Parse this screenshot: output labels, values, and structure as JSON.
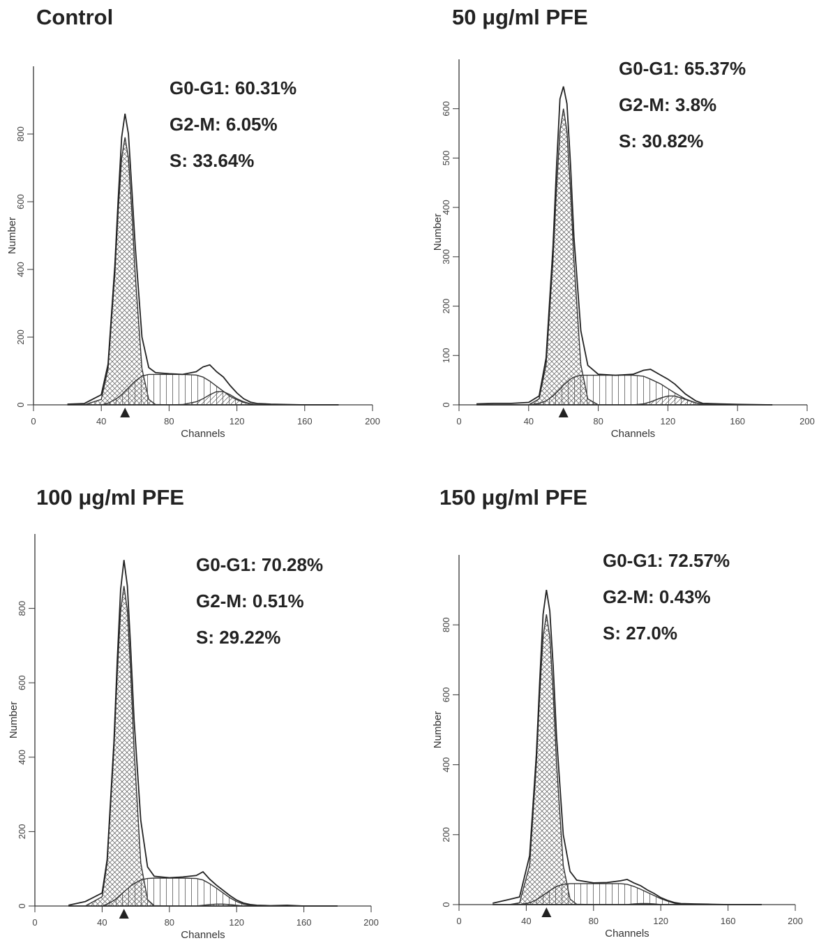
{
  "chart_data": [
    {
      "type": "line",
      "title": "Control",
      "annotations": [
        "G0-G1: 60.31%",
        "G2-M: 6.05%",
        "S: 33.64%"
      ],
      "xlabel": "Channels",
      "ylabel": "Number",
      "xlim": [
        0,
        200
      ],
      "xticks": [
        0,
        40,
        80,
        120,
        160,
        200
      ],
      "ylim": [
        0,
        1000
      ],
      "yticks": [
        0,
        200,
        400,
        600,
        800
      ],
      "peak_marker": 54,
      "x": [
        20,
        30,
        40,
        44,
        48,
        50,
        52,
        54,
        56,
        58,
        60,
        64,
        68,
        72,
        80,
        88,
        96,
        100,
        104,
        108,
        112,
        116,
        120,
        124,
        128,
        132,
        140,
        150,
        160,
        180
      ],
      "series": [
        {
          "color": "#333333",
          "fill": "crosshatch",
          "values": [
            0,
            0,
            16,
            107,
            385,
            574,
            729,
            790,
            729,
            574,
            385,
            107,
            16,
            1,
            0,
            0,
            0,
            0,
            0,
            0,
            0,
            0,
            0,
            0,
            0,
            0,
            0,
            0,
            0,
            0
          ]
        },
        {
          "color": "#333333",
          "fill": "vertical",
          "values": [
            0,
            0,
            0,
            5,
            15,
            22,
            30,
            40,
            50,
            60,
            70,
            85,
            90,
            90,
            90,
            90,
            88,
            82,
            70,
            55,
            40,
            25,
            15,
            7,
            3,
            0,
            0,
            0,
            0,
            0
          ]
        },
        {
          "color": "#333333",
          "fill": "diagonal",
          "values": [
            0,
            0,
            0,
            0,
            0,
            0,
            0,
            0,
            0,
            0,
            0,
            0,
            0,
            0,
            0,
            1,
            9,
            18,
            30,
            39,
            39,
            30,
            18,
            9,
            3,
            0,
            0,
            0,
            0,
            0
          ]
        },
        {
          "color": "#222222",
          "fill": "none",
          "values": [
            2,
            4,
            30,
            120,
            410,
            610,
            790,
            860,
            800,
            640,
            470,
            200,
            110,
            95,
            92,
            90,
            98,
            112,
            118,
            98,
            82,
            57,
            35,
            18,
            8,
            4,
            2,
            1,
            0,
            0
          ]
        }
      ]
    },
    {
      "type": "line",
      "title": "50 μg/ml PFE",
      "annotations": [
        "G0-G1: 65.37%",
        "G2-M: 3.8%",
        "S: 30.82%"
      ],
      "xlabel": "Channels",
      "ylabel": "Number",
      "xlim": [
        0,
        200
      ],
      "xticks": [
        0,
        40,
        80,
        120,
        160,
        200
      ],
      "ylim": [
        0,
        700
      ],
      "yticks": [
        0,
        100,
        200,
        300,
        400,
        500,
        600
      ],
      "peak_marker": 60,
      "x": [
        10,
        20,
        30,
        40,
        46,
        50,
        54,
        56,
        58,
        60,
        62,
        64,
        66,
        70,
        74,
        80,
        90,
        100,
        106,
        110,
        116,
        120,
        124,
        130,
        136,
        140,
        150,
        160,
        180
      ],
      "series": [
        {
          "color": "#333333",
          "fill": "crosshatch",
          "values": [
            0,
            0,
            0,
            0,
            12,
            81,
            292,
            436,
            554,
            600,
            554,
            436,
            292,
            81,
            12,
            0,
            0,
            0,
            0,
            0,
            0,
            0,
            0,
            0,
            0,
            0,
            0,
            0,
            0
          ]
        },
        {
          "color": "#333333",
          "fill": "vertical",
          "values": [
            0,
            0,
            0,
            0,
            3,
            8,
            18,
            25,
            32,
            40,
            46,
            52,
            56,
            60,
            60,
            60,
            60,
            60,
            58,
            52,
            42,
            33,
            24,
            12,
            4,
            1,
            0,
            0,
            0
          ]
        },
        {
          "color": "#333333",
          "fill": "diagonal",
          "values": [
            0,
            0,
            0,
            0,
            0,
            0,
            0,
            0,
            0,
            0,
            0,
            0,
            0,
            0,
            0,
            0,
            0,
            0,
            2,
            6,
            14,
            18,
            18,
            11,
            4,
            1,
            0,
            0,
            0
          ]
        },
        {
          "color": "#222222",
          "fill": "none",
          "values": [
            2,
            3,
            3,
            5,
            18,
            95,
            320,
            480,
            620,
            645,
            610,
            490,
            340,
            150,
            80,
            62,
            60,
            62,
            70,
            72,
            60,
            52,
            42,
            22,
            8,
            3,
            2,
            1,
            0
          ]
        }
      ]
    },
    {
      "type": "line",
      "title": "100 μg/ml PFE",
      "annotations": [
        "G0-G1: 70.28%",
        "G2-M: 0.51%",
        "S: 29.22%"
      ],
      "xlabel": "Channels",
      "ylabel": "Number",
      "xlim": [
        0,
        200
      ],
      "xticks": [
        0,
        40,
        80,
        120,
        160,
        200
      ],
      "ylim": [
        0,
        1000
      ],
      "yticks": [
        0,
        200,
        400,
        600,
        800
      ],
      "peak_marker": 53,
      "x": [
        20,
        30,
        40,
        43,
        47,
        49,
        51,
        53,
        55,
        57,
        59,
        63,
        67,
        71,
        80,
        88,
        96,
        100,
        104,
        108,
        112,
        116,
        120,
        124,
        128,
        132,
        140,
        150,
        160,
        180
      ],
      "series": [
        {
          "color": "#333333",
          "fill": "crosshatch",
          "values": [
            0,
            0,
            25,
            116,
            419,
            624,
            794,
            860,
            794,
            624,
            419,
            116,
            17,
            1,
            0,
            0,
            0,
            0,
            0,
            0,
            0,
            0,
            0,
            0,
            0,
            0,
            0,
            0,
            0,
            0
          ]
        },
        {
          "color": "#333333",
          "fill": "vertical",
          "values": [
            0,
            0,
            0,
            5,
            15,
            22,
            30,
            38,
            46,
            54,
            60,
            70,
            74,
            75,
            75,
            75,
            74,
            70,
            60,
            48,
            35,
            22,
            12,
            5,
            2,
            0,
            0,
            0,
            0,
            0
          ]
        },
        {
          "color": "#333333",
          "fill": "diagonal",
          "values": [
            0,
            0,
            0,
            0,
            0,
            0,
            0,
            0,
            0,
            0,
            0,
            0,
            0,
            0,
            0,
            0,
            0,
            2,
            4,
            5,
            5,
            4,
            2,
            0,
            0,
            0,
            0,
            0,
            0,
            0
          ]
        },
        {
          "color": "#222222",
          "fill": "none",
          "values": [
            2,
            12,
            35,
            125,
            440,
            660,
            850,
            930,
            860,
            690,
            500,
            230,
            105,
            80,
            76,
            78,
            82,
            92,
            72,
            56,
            42,
            28,
            16,
            8,
            4,
            2,
            1,
            2,
            0,
            0
          ]
        }
      ]
    },
    {
      "type": "line",
      "title": "150 μg/ml PFE",
      "annotations": [
        "G0-G1: 72.57%",
        "G2-M: 0.43%",
        "S: 27.0%"
      ],
      "xlabel": "Channels",
      "ylabel": "Number",
      "xlim": [
        0,
        200
      ],
      "xticks": [
        0,
        40,
        80,
        120,
        160,
        200
      ],
      "ylim": [
        0,
        1000
      ],
      "yticks": [
        0,
        200,
        400,
        600,
        800
      ],
      "peak_marker": 52,
      "x": [
        20,
        30,
        36,
        42,
        46,
        48,
        50,
        52,
        54,
        56,
        58,
        62,
        66,
        70,
        80,
        88,
        96,
        100,
        104,
        108,
        112,
        116,
        120,
        124,
        128,
        132,
        140,
        150,
        160,
        180
      ],
      "series": [
        {
          "color": "#333333",
          "fill": "crosshatch",
          "values": [
            0,
            0,
            5,
            112,
            404,
            603,
            766,
            830,
            766,
            603,
            404,
            112,
            16,
            1,
            0,
            0,
            0,
            0,
            0,
            0,
            0,
            0,
            0,
            0,
            0,
            0,
            0,
            0,
            0,
            0
          ]
        },
        {
          "color": "#333333",
          "fill": "vertical",
          "values": [
            0,
            0,
            0,
            5,
            14,
            20,
            27,
            33,
            40,
            46,
            52,
            58,
            60,
            60,
            60,
            60,
            60,
            58,
            52,
            44,
            35,
            26,
            17,
            10,
            4,
            1,
            0,
            0,
            0,
            0
          ]
        },
        {
          "color": "#333333",
          "fill": "diagonal",
          "values": [
            0,
            0,
            0,
            0,
            0,
            0,
            0,
            0,
            0,
            0,
            0,
            0,
            0,
            0,
            0,
            0,
            0,
            0,
            2,
            3,
            3,
            2,
            0,
            0,
            0,
            0,
            0,
            0,
            0,
            0
          ]
        },
        {
          "color": "#222222",
          "fill": "none",
          "values": [
            4,
            15,
            22,
            140,
            430,
            640,
            830,
            900,
            840,
            680,
            480,
            200,
            95,
            70,
            62,
            63,
            68,
            72,
            62,
            54,
            42,
            32,
            20,
            12,
            6,
            3,
            2,
            1,
            0,
            0
          ]
        }
      ]
    }
  ]
}
